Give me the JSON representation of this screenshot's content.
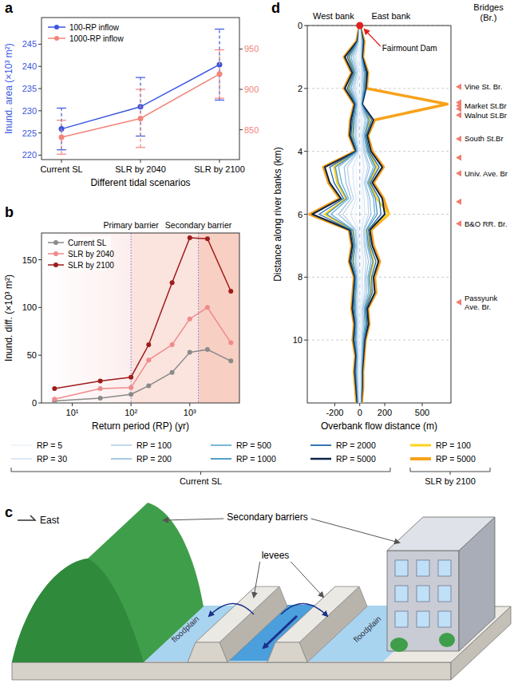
{
  "chart_data": [
    {
      "panel": "a",
      "type": "line",
      "x_label": "Different tidal scenarios",
      "y_label": "Inund. area (×10³ m²)",
      "categories": [
        "Current SL",
        "SLR by 2040",
        "SLR by 2100"
      ],
      "ylim": [
        219,
        251
      ],
      "yticks": [
        220,
        225,
        230,
        235,
        240,
        245
      ],
      "y2lim": [
        813,
        989
      ],
      "y2ticks": [
        850,
        900,
        950
      ],
      "legend": "upper left",
      "marker": "circle",
      "series": [
        {
          "name": "100-RP inflow",
          "color": "#3a56e0",
          "values": [
            225.9,
            230.9,
            240.4
          ],
          "errors": [
            4.7,
            6.6,
            8.0
          ],
          "line_style": "solid"
        },
        {
          "name": "1000-RP inflow",
          "color": "#f2857a",
          "values": [
            840.7,
            864,
            919
          ],
          "errors": [
            21,
            36,
            30
          ],
          "line_style": "solid",
          "axis": "y2"
        }
      ]
    },
    {
      "panel": "b",
      "type": "line",
      "log": "x",
      "x_label": "Return period (RP) (yr)",
      "y_label": "Inund. diff. (×10³ m²)",
      "x": [
        5,
        30,
        100,
        200,
        500,
        1000,
        2000,
        5000
      ],
      "xlim": [
        3,
        7000
      ],
      "xticks": [
        {
          "value": 10,
          "label": "10¹"
        },
        {
          "value": 100,
          "label": "10²"
        },
        {
          "value": 1000,
          "label": "10³"
        }
      ],
      "ylim": [
        0,
        178
      ],
      "yticks": [
        0,
        50,
        100,
        150
      ],
      "legend": "upper left",
      "marker": "circle",
      "annotations": [
        {
          "text": "Primary barrier",
          "x": 100
        },
        {
          "text": "Secondary barrier",
          "x": 1400
        }
      ],
      "series": [
        {
          "name": "Current SL",
          "color": "#8a8a8a",
          "values": [
            2,
            5,
            9,
            18,
            32,
            53,
            56,
            44
          ]
        },
        {
          "name": "SLR by 2040",
          "color": "#f08a8a",
          "values": [
            4,
            15,
            16,
            45,
            61,
            88,
            100,
            63
          ]
        },
        {
          "name": "SLR by 2100",
          "color": "#9e1b1b",
          "values": [
            15,
            23,
            27,
            61,
            126,
            173,
            172,
            117
          ]
        }
      ]
    },
    {
      "panel": "d",
      "type": "line",
      "x_label": "Overbank flow distance (m)",
      "y_label": "Distance along river banks (km)",
      "bank_labels": [
        "West bank",
        "East bank"
      ],
      "xlim": [
        -420,
        730
      ],
      "xticks": [
        -200,
        0,
        200,
        500
      ],
      "ylim": [
        0,
        12
      ],
      "yticks": [
        0,
        2,
        4,
        6,
        8,
        10
      ],
      "grid": true,
      "legend": "below",
      "annotations": [
        {
          "text": "Fairmount Dam",
          "x": 0,
          "y": 0
        }
      ],
      "bridges": {
        "title": "Bridges (Br.)",
        "positions": [
          1.95,
          2.45,
          2.55,
          2.65,
          2.85,
          3.6,
          4.2,
          4.7,
          5.6,
          6.3,
          8.8
        ],
        "labels": [
          "Vine St. Br.",
          null,
          "Market St.Br",
          null,
          "Walnut St.Br",
          "South St.Br",
          null,
          "Univ. Ave. Br",
          null,
          "B&O RR. Br.",
          "Passyunk Ave. Br."
        ]
      },
      "y": [
        0,
        0.5,
        1,
        1.5,
        2,
        2.5,
        3,
        3.5,
        4,
        4.5,
        5,
        5.5,
        6,
        6.5,
        7,
        7.5,
        8,
        8.5,
        9,
        9.5,
        10,
        10.5,
        11,
        11.5,
        12
      ],
      "series": [
        {
          "name": "RP = 5",
          "group": "Current SL",
          "color": "#eef3f9",
          "east_values": [
            0,
            5,
            0,
            5,
            5,
            0,
            10,
            5,
            10,
            20,
            10,
            20,
            20,
            10,
            10,
            15,
            10,
            10,
            5,
            5,
            5,
            5,
            0,
            0,
            0
          ],
          "west_values": [
            0,
            0,
            -10,
            -5,
            -10,
            -5,
            -5,
            -10,
            -5,
            -30,
            -25,
            -15,
            -40,
            -10,
            -5,
            -10,
            -5,
            -5,
            -5,
            -5,
            -5,
            -5,
            -5,
            -5,
            0
          ]
        },
        {
          "name": "RP = 30",
          "group": "Current SL",
          "color": "#d9e6f2",
          "east_values": [
            0,
            5,
            5,
            10,
            10,
            5,
            20,
            10,
            20,
            35,
            20,
            35,
            40,
            15,
            20,
            30,
            20,
            25,
            10,
            15,
            10,
            5,
            5,
            5,
            0
          ],
          "west_values": [
            0,
            -5,
            -25,
            -10,
            -25,
            -10,
            -15,
            -15,
            -5,
            -55,
            -50,
            -30,
            -75,
            -15,
            -10,
            -15,
            -10,
            -10,
            -10,
            -10,
            -10,
            -5,
            -10,
            -5,
            0
          ]
        },
        {
          "name": "RP = 100",
          "group": "Current SL",
          "color": "#bcd5ea",
          "east_values": [
            0,
            10,
            5,
            20,
            20,
            5,
            40,
            20,
            30,
            65,
            35,
            65,
            70,
            30,
            35,
            50,
            40,
            40,
            20,
            25,
            15,
            10,
            5,
            5,
            5
          ],
          "west_values": [
            0,
            -5,
            -40,
            -20,
            -40,
            -15,
            -25,
            -30,
            -10,
            -100,
            -85,
            -50,
            -135,
            -30,
            -20,
            -30,
            -15,
            -20,
            -20,
            -15,
            -20,
            -10,
            -15,
            -10,
            -5
          ]
        },
        {
          "name": "RP = 200",
          "group": "Current SL",
          "color": "#9cc4e3",
          "east_values": [
            0,
            15,
            10,
            25,
            20,
            10,
            50,
            25,
            40,
            80,
            45,
            80,
            90,
            35,
            45,
            70,
            50,
            55,
            25,
            30,
            20,
            15,
            10,
            10,
            5
          ],
          "west_values": [
            0,
            -10,
            -55,
            -25,
            -55,
            -20,
            -30,
            -35,
            -15,
            -125,
            -110,
            -70,
            -170,
            -35,
            -25,
            -35,
            -20,
            -20,
            -25,
            -20,
            -20,
            -15,
            -20,
            -15,
            -10
          ]
        },
        {
          "name": "RP = 500",
          "group": "Current SL",
          "color": "#6aaed6",
          "east_values": [
            0,
            20,
            10,
            35,
            30,
            10,
            65,
            35,
            55,
            110,
            60,
            110,
            120,
            50,
            60,
            90,
            65,
            70,
            35,
            40,
            25,
            20,
            10,
            10,
            5
          ],
          "west_values": [
            0,
            -10,
            -70,
            -35,
            -70,
            -25,
            -40,
            -50,
            -20,
            -170,
            -145,
            -90,
            -230,
            -50,
            -35,
            -50,
            -25,
            -30,
            -35,
            -25,
            -30,
            -20,
            -25,
            -20,
            -10
          ]
        },
        {
          "name": "RP = 1000",
          "group": "Current SL",
          "color": "#4292c6",
          "east_values": [
            0,
            20,
            15,
            40,
            35,
            15,
            75,
            40,
            65,
            125,
            70,
            125,
            140,
            55,
            70,
            105,
            75,
            85,
            40,
            50,
            30,
            20,
            15,
            15,
            5
          ],
          "west_values": [
            0,
            -15,
            -85,
            -40,
            -85,
            -30,
            -50,
            -55,
            -20,
            -195,
            -170,
            -105,
            -265,
            -55,
            -40,
            -55,
            -30,
            -35,
            -40,
            -30,
            -35,
            -20,
            -30,
            -20,
            -15
          ]
        },
        {
          "name": "RP = 2000",
          "group": "Current SL",
          "color": "#2166ac",
          "east_values": [
            0,
            25,
            15,
            50,
            45,
            15,
            95,
            50,
            75,
            155,
            85,
            155,
            170,
            70,
            85,
            130,
            95,
            100,
            50,
            60,
            35,
            25,
            15,
            15,
            10
          ],
          "west_values": [
            0,
            -15,
            -100,
            -50,
            -100,
            -35,
            -60,
            -70,
            -25,
            -240,
            -205,
            -130,
            -325,
            -70,
            -50,
            -70,
            -35,
            -45,
            -50,
            -35,
            -45,
            -25,
            -35,
            -25,
            -15
          ]
        },
        {
          "name": "RP = 5000",
          "group": "Current SL",
          "color": "#0c2447",
          "east_values": [
            0,
            30,
            20,
            60,
            50,
            20,
            110,
            60,
            90,
            180,
            100,
            180,
            200,
            80,
            100,
            150,
            110,
            120,
            60,
            70,
            40,
            30,
            20,
            20,
            10
          ],
          "west_values": [
            0,
            -20,
            -120,
            -60,
            -120,
            -40,
            -70,
            -80,
            -30,
            -280,
            -240,
            -150,
            -380,
            -80,
            -60,
            -80,
            -40,
            -50,
            -60,
            -40,
            -50,
            -30,
            -40,
            -30,
            -20
          ]
        },
        {
          "name": "RP = 100",
          "group": "SLR by 2100",
          "color": "#ffd21a",
          "east_values": [
            0,
            20,
            15,
            45,
            40,
            15,
            80,
            45,
            70,
            135,
            75,
            135,
            230,
            60,
            75,
            110,
            80,
            90,
            45,
            55,
            30,
            25,
            15,
            15,
            10
          ],
          "west_values": [
            0,
            -15,
            -90,
            -45,
            -90,
            -30,
            -55,
            -60,
            -25,
            -205,
            -180,
            -110,
            -280,
            -60,
            -45,
            -60,
            -30,
            -40,
            -45,
            -30,
            -40,
            -25,
            -30,
            -25,
            -15
          ]
        },
        {
          "name": "RP = 5000",
          "group": "SLR by 2100",
          "color": "#f7a21b",
          "east_values": [
            0,
            35,
            25,
            65,
            55,
            700,
            120,
            65,
            100,
            190,
            110,
            190,
            230,
            90,
            110,
            160,
            120,
            130,
            65,
            75,
            45,
            35,
            25,
            25,
            15
          ],
          "west_values": [
            0,
            -25,
            -125,
            -65,
            -125,
            -45,
            -75,
            -85,
            -35,
            -290,
            -250,
            -160,
            -400,
            -85,
            -65,
            -85,
            -45,
            -55,
            -65,
            -45,
            -55,
            -35,
            -45,
            -35,
            -25
          ]
        }
      ]
    }
  ],
  "diagram": {
    "panel": "c",
    "direction": "East",
    "secondary_barriers": "Secondary barriers",
    "levees": "levees",
    "floodplains": [
      "floodplain",
      "floodplain"
    ]
  }
}
